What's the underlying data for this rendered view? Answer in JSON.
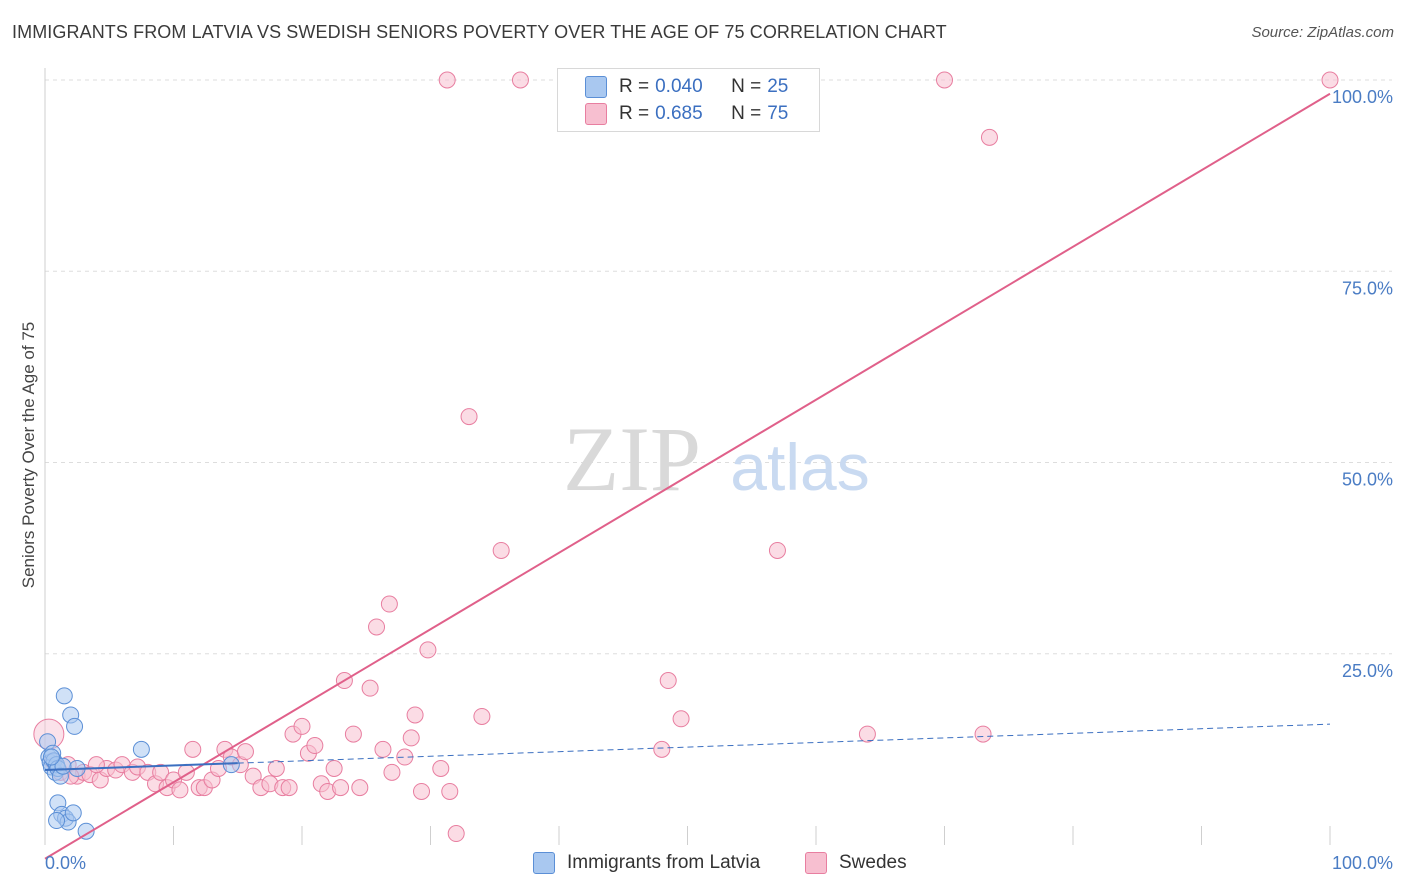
{
  "title": "IMMIGRANTS FROM LATVIA VS SWEDISH SENIORS POVERTY OVER THE AGE OF 75 CORRELATION CHART",
  "source": "Source: ZipAtlas.com",
  "watermark": {
    "zip": "ZIP",
    "atlas": "atlas"
  },
  "colors": {
    "blue_fill": "#a9c8f0",
    "blue_stroke": "#5b8fd6",
    "blue_line": "#3b6fc0",
    "pink_fill": "#f7bfd0",
    "pink_stroke": "#e87ea0",
    "pink_line": "#e0608a",
    "grid": "#dddddd",
    "tick_text": "#4a7cc4"
  },
  "legend": {
    "rows": [
      {
        "r_label": "R =",
        "r_value": "0.040",
        "n_label": "N =",
        "n_value": "25",
        "color": "#a9c8f0",
        "border": "#5b8fd6"
      },
      {
        "r_label": "R =",
        "r_value": "0.685",
        "n_label": "N =",
        "n_value": "75",
        "color": "#f7bfd0",
        "border": "#e87ea0"
      }
    ]
  },
  "bottom_legend": [
    {
      "label": "Immigrants from Latvia",
      "color": "#a9c8f0",
      "border": "#5b8fd6"
    },
    {
      "label": "Swedes",
      "color": "#f7bfd0",
      "border": "#e87ea0"
    }
  ],
  "chart_data": {
    "type": "scatter",
    "title": "IMMIGRANTS FROM LATVIA VS SWEDISH SENIORS POVERTY OVER THE AGE OF 75 CORRELATION CHART",
    "xlabel": "",
    "ylabel": "Seniors Poverty Over the Age of 75",
    "xlim": [
      0,
      100
    ],
    "ylim": [
      0,
      100
    ],
    "x_tick_labels": [
      "0.0%",
      "100.0%"
    ],
    "y_tick_labels": [
      "25.0%",
      "50.0%",
      "75.0%",
      "100.0%"
    ],
    "y_ticks": [
      25,
      50,
      75,
      100
    ],
    "grid": true,
    "series": [
      {
        "name": "Immigrants from Latvia",
        "color": "#a9c8f0",
        "points": [
          [
            0.2,
            13.5
          ],
          [
            0.3,
            11.5
          ],
          [
            0.4,
            10.8
          ],
          [
            0.5,
            10.2
          ],
          [
            0.6,
            12.0
          ],
          [
            0.7,
            11.0
          ],
          [
            0.8,
            9.5
          ],
          [
            0.9,
            10.5
          ],
          [
            1.0,
            10.0
          ],
          [
            1.2,
            9.0
          ],
          [
            1.5,
            19.5
          ],
          [
            2.0,
            17.0
          ],
          [
            2.3,
            15.5
          ],
          [
            2.5,
            10.0
          ],
          [
            1.0,
            5.5
          ],
          [
            1.3,
            4.0
          ],
          [
            1.6,
            3.5
          ],
          [
            1.8,
            3.0
          ],
          [
            2.2,
            4.2
          ],
          [
            3.2,
            1.8
          ],
          [
            7.5,
            12.5
          ],
          [
            14.5,
            10.5
          ],
          [
            0.9,
            3.2
          ],
          [
            1.4,
            10.3
          ],
          [
            0.5,
            11.5
          ]
        ],
        "trend": {
          "x": [
            0,
            100
          ],
          "y": [
            9.8,
            15.8
          ],
          "solid_until_x": 15
        }
      },
      {
        "name": "Swedes",
        "color": "#f7bfd0",
        "points": [
          [
            0.3,
            14.5
          ],
          [
            0.6,
            11.0
          ],
          [
            1.2,
            9.5
          ],
          [
            1.8,
            10.5
          ],
          [
            2.5,
            9.0
          ],
          [
            3.0,
            9.5
          ],
          [
            3.5,
            9.2
          ],
          [
            4.3,
            8.5
          ],
          [
            4.8,
            10.0
          ],
          [
            5.5,
            9.8
          ],
          [
            6.0,
            10.5
          ],
          [
            6.8,
            9.5
          ],
          [
            7.2,
            10.2
          ],
          [
            8.0,
            9.5
          ],
          [
            8.6,
            8.0
          ],
          [
            9.0,
            9.5
          ],
          [
            9.5,
            7.5
          ],
          [
            10.0,
            8.5
          ],
          [
            10.5,
            7.2
          ],
          [
            11.0,
            9.5
          ],
          [
            11.5,
            12.5
          ],
          [
            12.0,
            7.5
          ],
          [
            12.4,
            7.5
          ],
          [
            13.0,
            8.5
          ],
          [
            13.5,
            10.0
          ],
          [
            14.0,
            12.5
          ],
          [
            14.5,
            11.5
          ],
          [
            15.2,
            10.5
          ],
          [
            15.6,
            12.2
          ],
          [
            16.2,
            9.0
          ],
          [
            16.8,
            7.5
          ],
          [
            17.5,
            8.0
          ],
          [
            18.0,
            10.0
          ],
          [
            18.5,
            7.5
          ],
          [
            19.3,
            14.5
          ],
          [
            20.0,
            15.5
          ],
          [
            20.5,
            12.0
          ],
          [
            21.0,
            13.0
          ],
          [
            21.5,
            8.0
          ],
          [
            22.0,
            7.0
          ],
          [
            22.5,
            10.0
          ],
          [
            23.0,
            7.5
          ],
          [
            23.3,
            21.5
          ],
          [
            24.0,
            14.5
          ],
          [
            24.5,
            7.5
          ],
          [
            25.3,
            20.5
          ],
          [
            25.8,
            28.5
          ],
          [
            26.3,
            12.5
          ],
          [
            26.8,
            31.5
          ],
          [
            27.0,
            9.5
          ],
          [
            28.0,
            11.5
          ],
          [
            28.5,
            14.0
          ],
          [
            28.8,
            17.0
          ],
          [
            29.3,
            7.0
          ],
          [
            29.8,
            25.5
          ],
          [
            30.8,
            10.0
          ],
          [
            31.5,
            7.0
          ],
          [
            32.0,
            1.5
          ],
          [
            34.0,
            16.8
          ],
          [
            33.0,
            56.0
          ],
          [
            35.5,
            38.5
          ],
          [
            37.0,
            100.0
          ],
          [
            48.0,
            12.5
          ],
          [
            48.5,
            21.5
          ],
          [
            49.5,
            16.5
          ],
          [
            57.0,
            38.5
          ],
          [
            64.0,
            14.5
          ],
          [
            70.0,
            100.0
          ],
          [
            73.0,
            14.5
          ],
          [
            73.5,
            92.5
          ],
          [
            100.0,
            100.0
          ],
          [
            2.0,
            9.0
          ],
          [
            4.0,
            10.5
          ],
          [
            19.0,
            7.5
          ],
          [
            31.3,
            100.0
          ]
        ],
        "trend": {
          "x": [
            0,
            100
          ],
          "y": [
            -1.8,
            98.2
          ]
        }
      }
    ]
  }
}
